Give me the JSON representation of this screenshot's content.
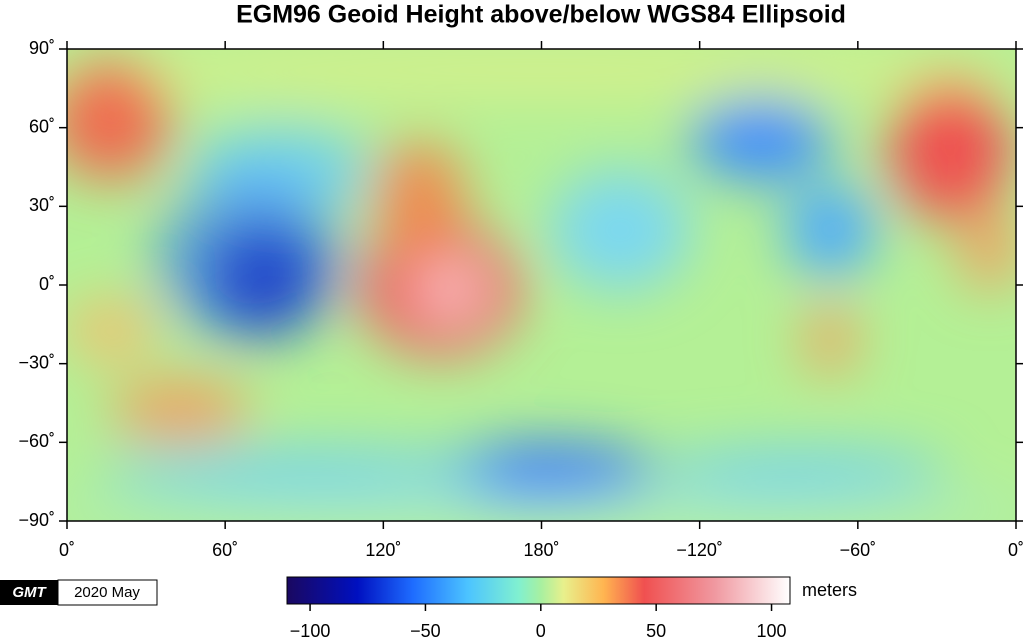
{
  "map": {
    "title": "EGM96 Geoid Height above/below WGS84 Ellipsoid",
    "xlim": [
      0,
      360
    ],
    "ylim": [
      -90,
      90
    ],
    "lon_ticks": [
      {
        "value": 0,
        "label": "0˚"
      },
      {
        "value": 60,
        "label": "60˚"
      },
      {
        "value": 120,
        "label": "120˚"
      },
      {
        "value": 180,
        "label": "180˚"
      },
      {
        "value": -120,
        "label": "−120˚"
      },
      {
        "value": -60,
        "label": "−60˚"
      },
      {
        "value": 0,
        "label": "0˚"
      }
    ],
    "lat_ticks": [
      {
        "value": 90,
        "label": "90˚"
      },
      {
        "value": 60,
        "label": "60˚"
      },
      {
        "value": 30,
        "label": "30˚"
      },
      {
        "value": 0,
        "label": "0˚"
      },
      {
        "value": -30,
        "label": "−30˚"
      },
      {
        "value": -60,
        "label": "−60˚"
      },
      {
        "value": -90,
        "label": "−90˚"
      }
    ]
  },
  "colorbar": {
    "lim": [
      -110,
      108
    ],
    "ticks": [
      {
        "value": -100,
        "label": "−100"
      },
      {
        "value": -50,
        "label": "−50"
      },
      0,
      50,
      100
    ],
    "label": "meters"
  },
  "footer": {
    "logo": "GMT",
    "date": "2020 May"
  }
}
